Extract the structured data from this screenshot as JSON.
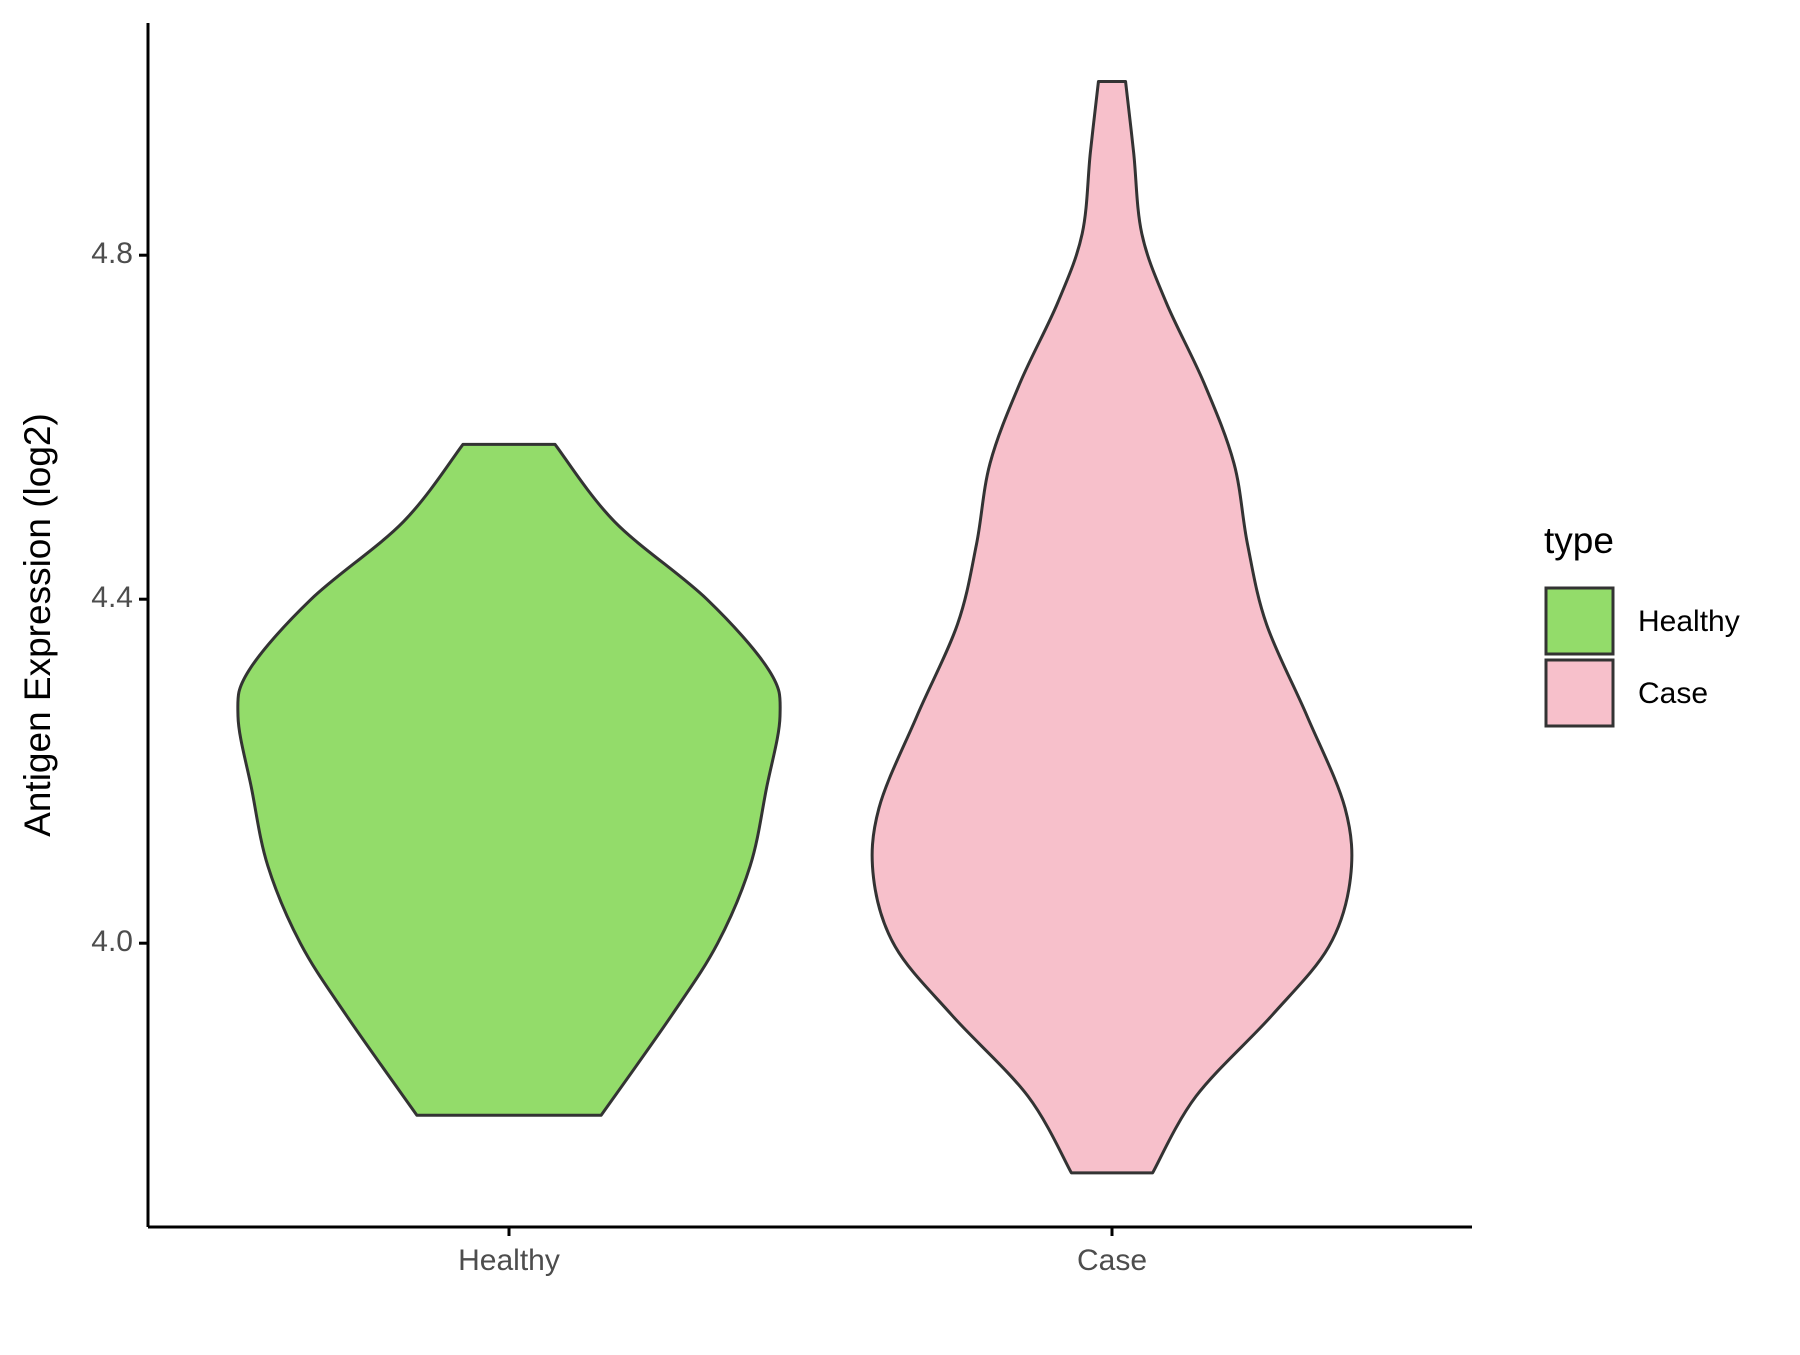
{
  "chart_data": {
    "type": "violin",
    "y_label": "Antigen Expression (log2)",
    "legend_title": "type",
    "legend_position": "right",
    "categories": [
      "Healthy",
      "Case"
    ],
    "ylim": [
      3.67,
      5.07
    ],
    "yticks": [
      {
        "value": 4,
        "label": "4.0"
      },
      4.4,
      4.8
    ],
    "series": [
      {
        "name": "Healthy",
        "color": "#93dc6a",
        "y": [
          4.58,
          4.49,
          4.4,
          4.317,
          4.264,
          4.18,
          4.09,
          4.0,
          3.916,
          3.8
        ],
        "density": [
          0.17,
          0.39,
          0.73,
          0.96,
          1.0,
          0.95,
          0.89,
          0.77,
          0.6,
          0.34
        ]
      },
      {
        "name": "Case",
        "color": "#f7c0cb",
        "y": [
          5.002,
          4.919,
          4.825,
          4.745,
          4.651,
          4.558,
          4.464,
          4.371,
          4.264,
          4.157,
          4.076,
          3.996,
          3.916,
          3.822,
          3.733
        ],
        "density": [
          0.05,
          0.08,
          0.11,
          0.2,
          0.34,
          0.45,
          0.5,
          0.57,
          0.72,
          0.86,
          0.88,
          0.8,
          0.59,
          0.31,
          0.15
        ]
      }
    ]
  }
}
